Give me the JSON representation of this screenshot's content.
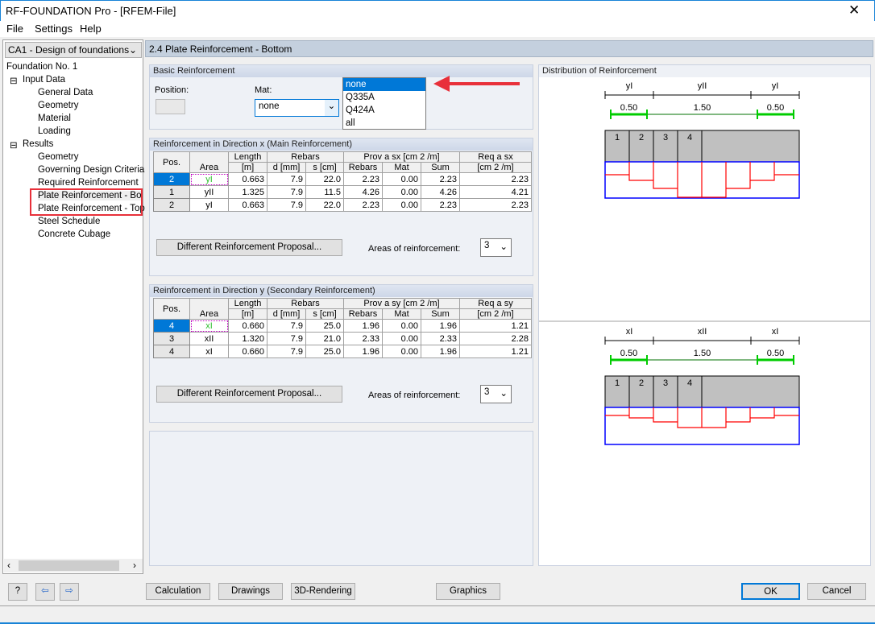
{
  "window": {
    "title": "RF-FOUNDATION Pro - [RFEM-File]",
    "close": "✕"
  },
  "menu": [
    "File",
    "Settings",
    "Help"
  ],
  "sidebar": {
    "case": "CA1 - Design of foundations",
    "root": "Foundation No. 1",
    "input": {
      "label": "Input Data",
      "items": [
        "General Data",
        "Geometry",
        "Material",
        "Loading"
      ]
    },
    "results": {
      "label": "Results",
      "items": [
        "Geometry",
        "Governing Design Criteria",
        "Required Reinforcement",
        "Plate Reinforcement - Bottom",
        "Plate Reinforcement - Top",
        "Steel Schedule",
        "Concrete Cubage"
      ]
    }
  },
  "header": {
    "title": "2.4 Plate Reinforcement - Bottom"
  },
  "basic": {
    "title": "Basic Reinforcement",
    "position_label": "Position:",
    "position_value": "",
    "mat_label": "Mat:",
    "mat_value": "none",
    "mat_options": [
      "none",
      "Q335A",
      "Q424A",
      "all"
    ]
  },
  "dir_x": {
    "title": "Reinforcement in Direction x (Main Reinforcement)",
    "headers": {
      "pos": "Pos.",
      "area": "Area",
      "length": "Length",
      "length_unit": "[m]",
      "rebars": "Rebars",
      "d": "d [mm]",
      "s": "s [cm]",
      "prov": "Prov a sx [cm 2 /m]",
      "prov_rebars": "Rebars",
      "prov_mat": "Mat",
      "prov_sum": "Sum",
      "req": "Req a sx",
      "req_unit": "[cm 2 /m]"
    },
    "rows": [
      [
        "2",
        "yI",
        "0.663",
        "7.9",
        "22.0",
        "2.23",
        "0.00",
        "2.23",
        "2.23"
      ],
      [
        "1",
        "yII",
        "1.325",
        "7.9",
        "11.5",
        "4.26",
        "0.00",
        "4.26",
        "4.21"
      ],
      [
        "2",
        "yI",
        "0.663",
        "7.9",
        "22.0",
        "2.23",
        "0.00",
        "2.23",
        "2.23"
      ]
    ],
    "proposal_button": "Different Reinforcement Proposal...",
    "areas_label": "Areas of reinforcement:",
    "areas_value": "3"
  },
  "dir_y": {
    "title": "Reinforcement in Direction y (Secondary Reinforcement)",
    "headers": {
      "pos": "Pos.",
      "area": "Area",
      "length": "Length",
      "length_unit": "[m]",
      "rebars": "Rebars",
      "d": "d [mm]",
      "s": "s [cm]",
      "prov": "Prov a sy [cm 2 /m]",
      "prov_rebars": "Rebars",
      "prov_mat": "Mat",
      "prov_sum": "Sum",
      "req": "Req a sy",
      "req_unit": "[cm 2 /m]"
    },
    "rows": [
      [
        "4",
        "xI",
        "0.660",
        "7.9",
        "25.0",
        "1.96",
        "0.00",
        "1.96",
        "1.21"
      ],
      [
        "3",
        "xII",
        "1.320",
        "7.9",
        "21.0",
        "2.33",
        "0.00",
        "2.33",
        "2.28"
      ],
      [
        "4",
        "xI",
        "0.660",
        "7.9",
        "25.0",
        "1.96",
        "0.00",
        "1.96",
        "1.21"
      ]
    ],
    "proposal_button": "Different Reinforcement Proposal...",
    "areas_label": "Areas of reinforcement:",
    "areas_value": "3"
  },
  "distribution": {
    "title": "Distribution of Reinforcement",
    "top": {
      "zones": [
        "yI",
        "yII",
        "yI"
      ],
      "widths": [
        "0.50",
        "1.50",
        "0.50"
      ],
      "positions": [
        "1",
        "2",
        "3",
        "4"
      ]
    },
    "bottom": {
      "zones": [
        "xI",
        "xII",
        "xI"
      ],
      "widths": [
        "0.50",
        "1.50",
        "0.50"
      ],
      "positions": [
        "1",
        "2",
        "3",
        "4"
      ]
    },
    "colors": {
      "dimension": "#00cc00",
      "outline": "#0000ff",
      "steps": "#ff0000",
      "plate": "#c0c0c0"
    }
  },
  "buttons": {
    "calculation": "Calculation",
    "drawings": "Drawings",
    "rendering": "3D-Rendering",
    "graphics": "Graphics",
    "ok": "OK",
    "cancel": "Cancel"
  },
  "annotations": {
    "highlight": "#e8303a"
  }
}
